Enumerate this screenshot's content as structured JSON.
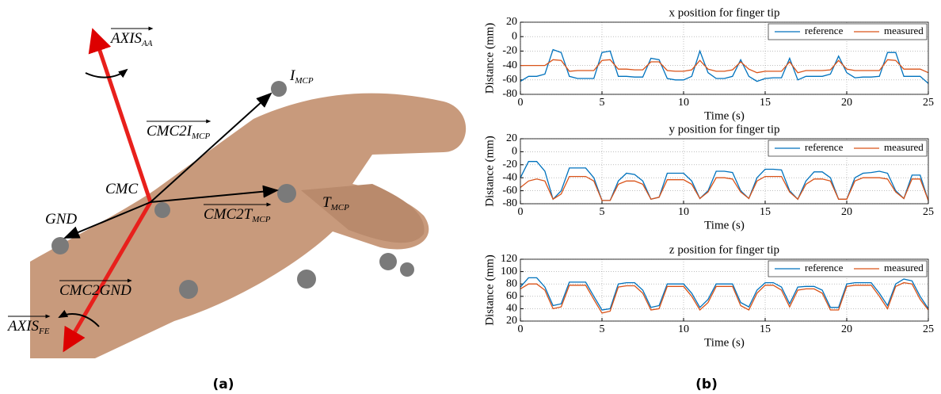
{
  "figure": {
    "panel_a": {
      "labels": [
        {
          "text": "AXIS",
          "sub": "AA"
        },
        {
          "text": "CMC2I",
          "sub": "MCP"
        },
        {
          "text": "I",
          "sub": "MCP"
        },
        {
          "text": "CMC"
        },
        {
          "text": "T",
          "sub": "MCP"
        },
        {
          "text": "CMC2T",
          "sub": "MCP"
        },
        {
          "text": "GND"
        },
        {
          "text": "CMC2GND"
        },
        {
          "text": "AXIS",
          "sub": "FE"
        }
      ],
      "caption": "(a)"
    },
    "panel_b": {
      "caption": "(b)"
    }
  },
  "chart_data": [
    {
      "type": "line",
      "title": "x position for finger tip",
      "xlabel": "Time (s)",
      "ylabel": "Distance (mm)",
      "xlim": [
        0,
        25
      ],
      "ylim": [
        -80,
        20
      ],
      "xticks": [
        0,
        5,
        10,
        15,
        20,
        25
      ],
      "yticks": [
        -80,
        -60,
        -40,
        -20,
        0,
        20
      ],
      "grid": true,
      "legend": "upper right",
      "x": [
        0,
        0.5,
        1,
        1.5,
        2,
        2.5,
        3,
        3.5,
        4,
        4.5,
        5,
        5.5,
        6,
        6.5,
        7,
        7.5,
        8,
        8.5,
        9,
        9.5,
        10,
        10.5,
        11,
        11.5,
        12,
        12.5,
        13,
        13.5,
        14,
        14.5,
        15,
        15.5,
        16,
        16.5,
        17,
        17.5,
        18,
        18.5,
        19,
        19.5,
        20,
        20.5,
        21,
        21.5,
        22,
        22.5,
        23,
        23.5,
        24,
        24.5,
        25
      ],
      "series": [
        {
          "name": "reference",
          "color": "#0072bd",
          "values": [
            -62,
            -55,
            -55,
            -52,
            -18,
            -22,
            -55,
            -58,
            -58,
            -58,
            -22,
            -20,
            -55,
            -55,
            -56,
            -56,
            -30,
            -32,
            -58,
            -60,
            -60,
            -55,
            -20,
            -50,
            -58,
            -58,
            -55,
            -32,
            -55,
            -62,
            -58,
            -57,
            -57,
            -30,
            -60,
            -55,
            -55,
            -55,
            -52,
            -27,
            -50,
            -57,
            -56,
            -56,
            -55,
            -22,
            -22,
            -55,
            -55,
            -55,
            -65
          ]
        },
        {
          "name": "measured",
          "color": "#d95319",
          "values": [
            -40,
            -40,
            -40,
            -40,
            -32,
            -33,
            -48,
            -47,
            -47,
            -47,
            -33,
            -32,
            -45,
            -45,
            -46,
            -46,
            -35,
            -35,
            -47,
            -48,
            -48,
            -46,
            -33,
            -45,
            -48,
            -48,
            -46,
            -35,
            -45,
            -50,
            -48,
            -48,
            -48,
            -35,
            -50,
            -47,
            -47,
            -47,
            -46,
            -33,
            -45,
            -47,
            -47,
            -47,
            -47,
            -32,
            -33,
            -45,
            -45,
            -45,
            -50
          ]
        }
      ]
    },
    {
      "type": "line",
      "title": "y position for finger tip",
      "xlabel": "Time (s)",
      "ylabel": "Distance (mm)",
      "xlim": [
        0,
        25
      ],
      "ylim": [
        -80,
        20
      ],
      "xticks": [
        0,
        5,
        10,
        15,
        20,
        25
      ],
      "yticks": [
        -80,
        -60,
        -40,
        -20,
        0,
        20
      ],
      "grid": true,
      "legend": "upper right",
      "x": [
        0,
        0.5,
        1,
        1.5,
        2,
        2.5,
        3,
        3.5,
        4,
        4.5,
        5,
        5.5,
        6,
        6.5,
        7,
        7.5,
        8,
        8.5,
        9,
        9.5,
        10,
        10.5,
        11,
        11.5,
        12,
        12.5,
        13,
        13.5,
        14,
        14.5,
        15,
        15.5,
        16,
        16.5,
        17,
        17.5,
        18,
        18.5,
        19,
        19.5,
        20,
        20.5,
        21,
        21.5,
        22,
        22.5,
        23,
        23.5,
        24,
        24.5,
        25
      ],
      "series": [
        {
          "name": "reference",
          "color": "#0072bd",
          "values": [
            -40,
            -15,
            -15,
            -30,
            -73,
            -60,
            -25,
            -25,
            -25,
            -40,
            -75,
            -75,
            -45,
            -33,
            -35,
            -45,
            -73,
            -70,
            -33,
            -33,
            -33,
            -45,
            -72,
            -60,
            -30,
            -30,
            -32,
            -60,
            -72,
            -40,
            -27,
            -27,
            -28,
            -60,
            -73,
            -45,
            -31,
            -31,
            -40,
            -73,
            -73,
            -40,
            -33,
            -32,
            -30,
            -33,
            -60,
            -72,
            -36,
            -36,
            -75
          ]
        },
        {
          "name": "measured",
          "color": "#d95319",
          "values": [
            -55,
            -45,
            -42,
            -45,
            -73,
            -65,
            -38,
            -38,
            -38,
            -45,
            -75,
            -75,
            -50,
            -45,
            -45,
            -50,
            -73,
            -70,
            -43,
            -43,
            -43,
            -50,
            -72,
            -62,
            -40,
            -40,
            -42,
            -62,
            -72,
            -45,
            -38,
            -38,
            -38,
            -62,
            -73,
            -50,
            -42,
            -42,
            -45,
            -73,
            -73,
            -45,
            -40,
            -40,
            -40,
            -42,
            -62,
            -72,
            -42,
            -42,
            -75
          ]
        }
      ]
    },
    {
      "type": "line",
      "title": "z position for finger tip",
      "xlabel": "Time (s)",
      "ylabel": "Distance (mm)",
      "xlim": [
        0,
        25
      ],
      "ylim": [
        20,
        120
      ],
      "xticks": [
        0,
        5,
        10,
        15,
        20,
        25
      ],
      "yticks": [
        20,
        40,
        60,
        80,
        100,
        120
      ],
      "grid": true,
      "legend": "upper right",
      "x": [
        0,
        0.5,
        1,
        1.5,
        2,
        2.5,
        3,
        3.5,
        4,
        4.5,
        5,
        5.5,
        6,
        6.5,
        7,
        7.5,
        8,
        8.5,
        9,
        9.5,
        10,
        10.5,
        11,
        11.5,
        12,
        12.5,
        13,
        13.5,
        14,
        14.5,
        15,
        15.5,
        16,
        16.5,
        17,
        17.5,
        18,
        18.5,
        19,
        19.5,
        20,
        20.5,
        21,
        21.5,
        22,
        22.5,
        23,
        23.5,
        24,
        24.5,
        25
      ],
      "series": [
        {
          "name": "reference",
          "color": "#0072bd",
          "values": [
            75,
            90,
            90,
            75,
            45,
            48,
            83,
            83,
            83,
            60,
            38,
            40,
            80,
            82,
            82,
            70,
            42,
            45,
            80,
            80,
            80,
            65,
            42,
            55,
            80,
            80,
            80,
            50,
            43,
            70,
            82,
            82,
            75,
            48,
            75,
            76,
            76,
            70,
            42,
            42,
            80,
            82,
            82,
            82,
            65,
            45,
            80,
            88,
            85,
            60,
            40
          ]
        },
        {
          "name": "measured",
          "color": "#d95319",
          "values": [
            72,
            80,
            80,
            70,
            40,
            43,
            78,
            78,
            78,
            55,
            33,
            36,
            75,
            77,
            77,
            65,
            38,
            40,
            76,
            76,
            76,
            60,
            38,
            50,
            76,
            76,
            76,
            45,
            38,
            65,
            78,
            78,
            70,
            43,
            70,
            72,
            72,
            65,
            38,
            38,
            76,
            78,
            78,
            78,
            60,
            40,
            76,
            82,
            80,
            55,
            38
          ]
        }
      ]
    }
  ]
}
